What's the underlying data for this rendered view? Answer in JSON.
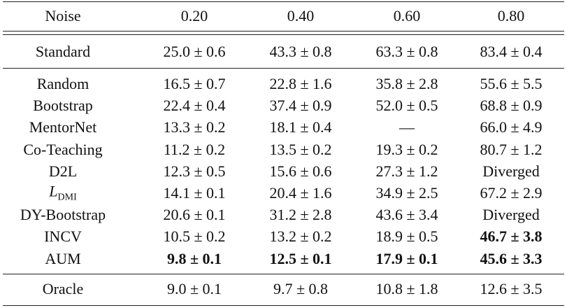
{
  "table": {
    "header": [
      "Noise",
      "0.20",
      "0.40",
      "0.60",
      "0.80"
    ],
    "groups": [
      [
        [
          "Standard",
          "25.0 ± 0.6",
          "43.3 ± 0.8",
          "63.3 ± 0.8",
          "83.4 ± 0.4"
        ]
      ],
      [
        [
          "Random",
          "16.5 ± 0.7",
          "22.8 ± 1.6",
          "35.8 ± 2.8",
          "55.6 ± 5.5"
        ],
        [
          "Bootstrap",
          "22.4 ± 0.4",
          "37.4 ± 0.9",
          "52.0 ± 0.5",
          "68.8 ± 0.9"
        ],
        [
          "MentorNet",
          "13.3 ± 0.2",
          "18.1 ± 0.4",
          "—",
          "66.0 ± 4.9"
        ],
        [
          "Co-Teaching",
          "11.2 ± 0.2",
          "13.5 ± 0.2",
          "19.3 ± 0.2",
          "80.7 ± 1.2"
        ],
        [
          "D2L",
          "12.3 ± 0.5",
          "15.6 ± 0.6",
          "27.3 ± 1.2",
          "Diverged"
        ],
        [
          {
            "text": "L",
            "sub": "DMI"
          },
          "14.1 ± 0.1",
          "20.4 ± 1.6",
          "34.9 ± 2.5",
          "67.2 ± 2.9"
        ],
        [
          "DY-Bootstrap",
          "20.6 ± 0.1",
          "31.2 ± 2.8",
          "43.6 ± 3.4",
          "Diverged"
        ],
        [
          "INCV",
          "10.5 ± 0.2",
          "13.2 ± 0.2",
          "18.9 ± 0.5",
          {
            "text": "46.7 ± 3.8",
            "bold": true
          }
        ],
        [
          "AUM",
          {
            "text": "9.8 ± 0.1",
            "bold": true
          },
          {
            "text": "12.5 ± 0.1",
            "bold": true
          },
          {
            "text": "17.9 ± 0.1",
            "bold": true
          },
          {
            "text": "45.6 ± 3.3",
            "bold": true
          }
        ]
      ],
      [
        [
          "Oracle",
          "9.0 ± 0.1",
          "9.7 ± 0.8",
          "10.8 ± 1.8",
          "12.6 ± 3.5"
        ]
      ]
    ]
  }
}
